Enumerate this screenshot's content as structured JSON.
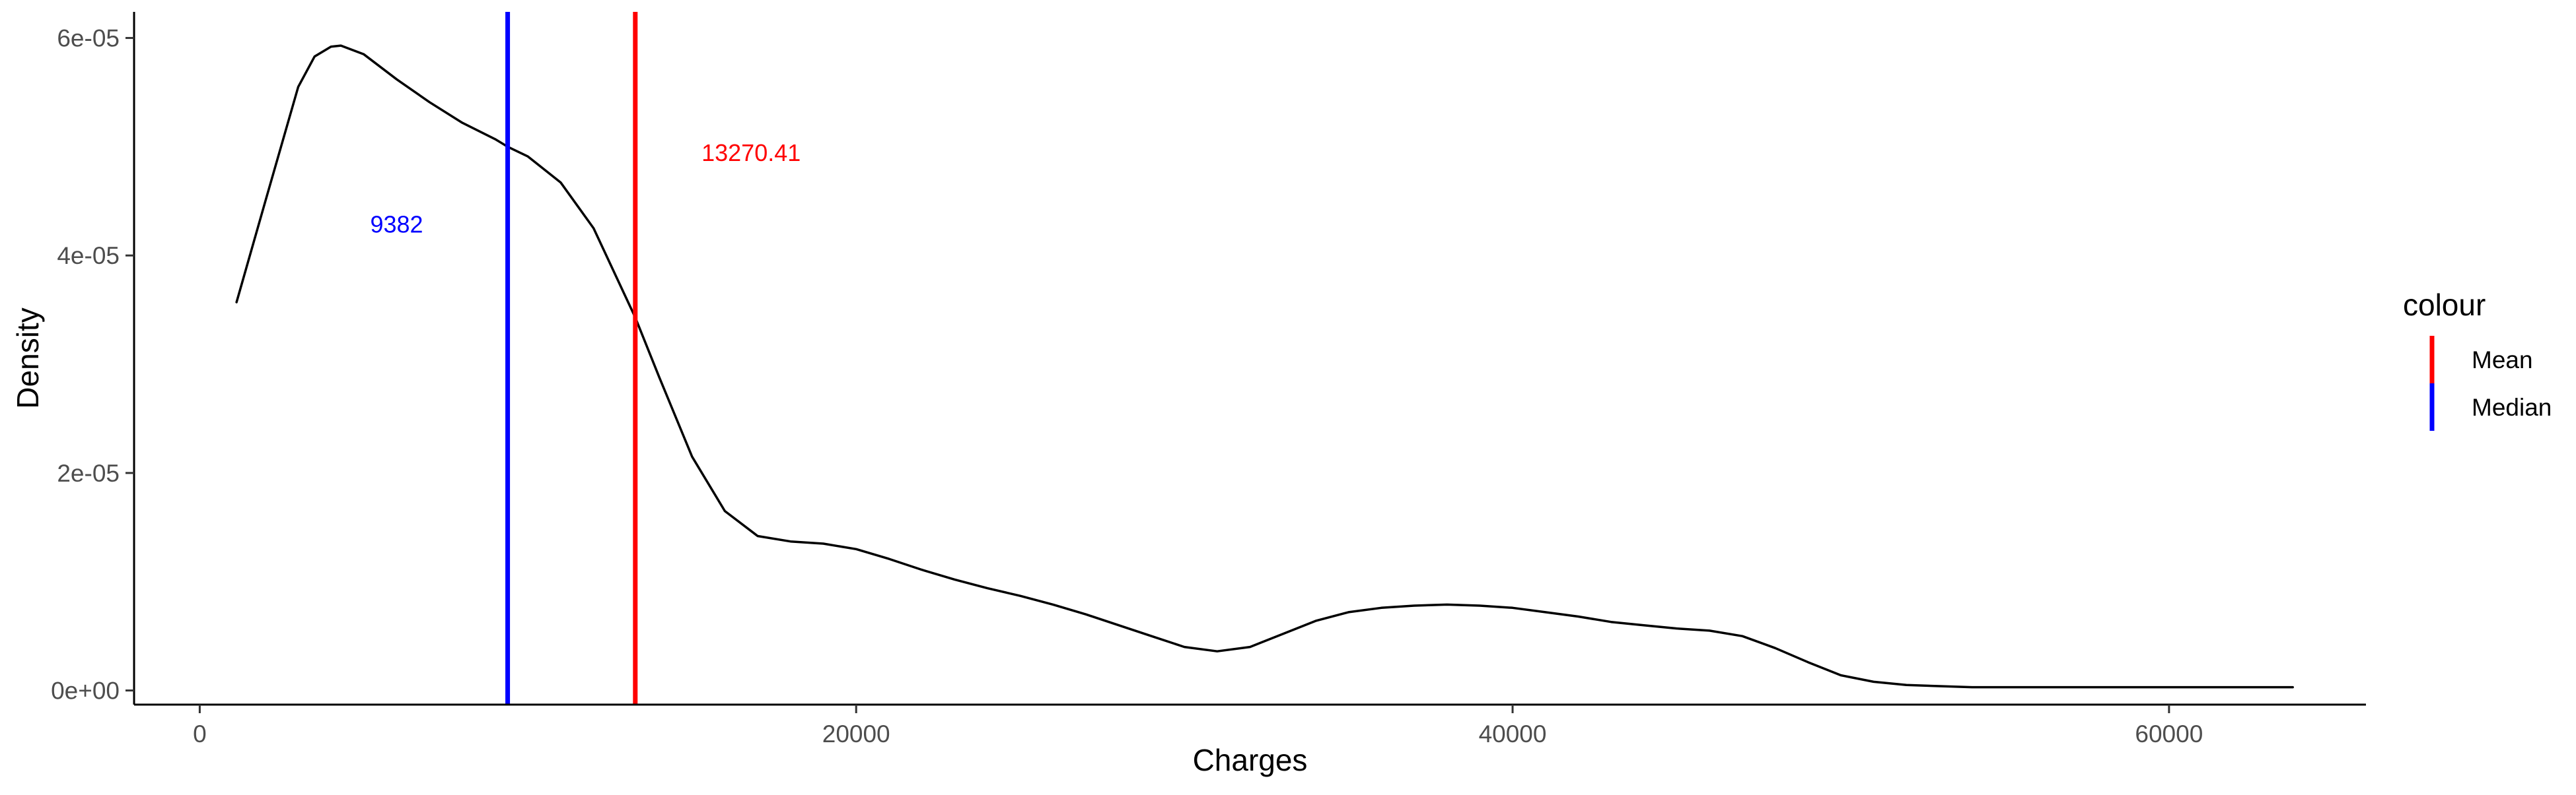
{
  "chart_data": {
    "type": "line",
    "xlabel": "Charges",
    "ylabel": "Density",
    "xlim": [
      -2000,
      66000
    ],
    "ylim": [
      -1.3e-06,
      6.24e-05
    ],
    "x_ticks": [
      0,
      20000,
      40000,
      60000
    ],
    "x_tick_labels": [
      "0",
      "20000",
      "40000",
      "60000"
    ],
    "y_ticks": [
      0,
      2e-05,
      4e-05,
      6e-05
    ],
    "y_tick_labels": [
      "0e+00",
      "2e-05",
      "4e-05",
      "6e-05"
    ],
    "grid": false,
    "legend": {
      "title": "colour",
      "position": "right",
      "items": [
        {
          "label": "Mean",
          "color": "#ff0000"
        },
        {
          "label": "Median",
          "color": "#0000ff"
        }
      ]
    },
    "series": [
      {
        "color": "#000000",
        "x": [
          1122,
          2000,
          3000,
          3500,
          4000,
          4300,
          5000,
          6000,
          7000,
          8000,
          9000,
          9382,
          10000,
          11000,
          12000,
          13270,
          14000,
          15000,
          16000,
          17000,
          18000,
          19000,
          20000,
          21000,
          22000,
          23000,
          24000,
          25000,
          26000,
          27000,
          28000,
          29000,
          30000,
          31000,
          32000,
          33000,
          34000,
          35000,
          36000,
          37000,
          38000,
          39000,
          40000,
          41000,
          42000,
          43000,
          44000,
          45000,
          46000,
          47000,
          48000,
          49000,
          50000,
          51000,
          52000,
          53000,
          54000,
          55000,
          58000,
          60000,
          62000,
          63770
        ],
        "y": [
          3.57e-05,
          4.5e-05,
          5.55e-05,
          5.83e-05,
          5.92e-05,
          5.93e-05,
          5.85e-05,
          5.62e-05,
          5.41e-05,
          5.22e-05,
          5.07e-05,
          5e-05,
          4.91e-05,
          4.67e-05,
          4.25e-05,
          3.43e-05,
          2.88e-05,
          2.15e-05,
          1.65e-05,
          1.42e-05,
          1.37e-05,
          1.35e-05,
          1.3e-05,
          1.21e-05,
          1.11e-05,
          1.02e-05,
          9.4e-06,
          8.7e-06,
          7.9e-06,
          7e-06,
          6e-06,
          5e-06,
          4e-06,
          3.6e-06,
          4e-06,
          5.2e-06,
          6.4e-06,
          7.2e-06,
          7.6e-06,
          7.8e-06,
          7.9e-06,
          7.8e-06,
          7.6e-06,
          7.2e-06,
          6.8e-06,
          6.3e-06,
          6e-06,
          5.7e-06,
          5.5e-06,
          5e-06,
          3.9e-06,
          2.6e-06,
          1.4e-06,
          8e-07,
          5e-07,
          4e-07,
          3e-07,
          3e-07,
          3e-07,
          3e-07,
          3e-07,
          3e-07
        ]
      }
    ],
    "vlines": [
      {
        "name": "Median",
        "x": 9382,
        "color": "#0000ff"
      },
      {
        "name": "Mean",
        "x": 13270.41,
        "color": "#ff0000"
      }
    ],
    "annotations": [
      {
        "text": "9382",
        "x": 6000,
        "y": 4.21e-05,
        "color": "#0000ff"
      },
      {
        "text": "13270.41",
        "x": 16800,
        "y": 4.87e-05,
        "color": "#ff0000"
      }
    ]
  }
}
